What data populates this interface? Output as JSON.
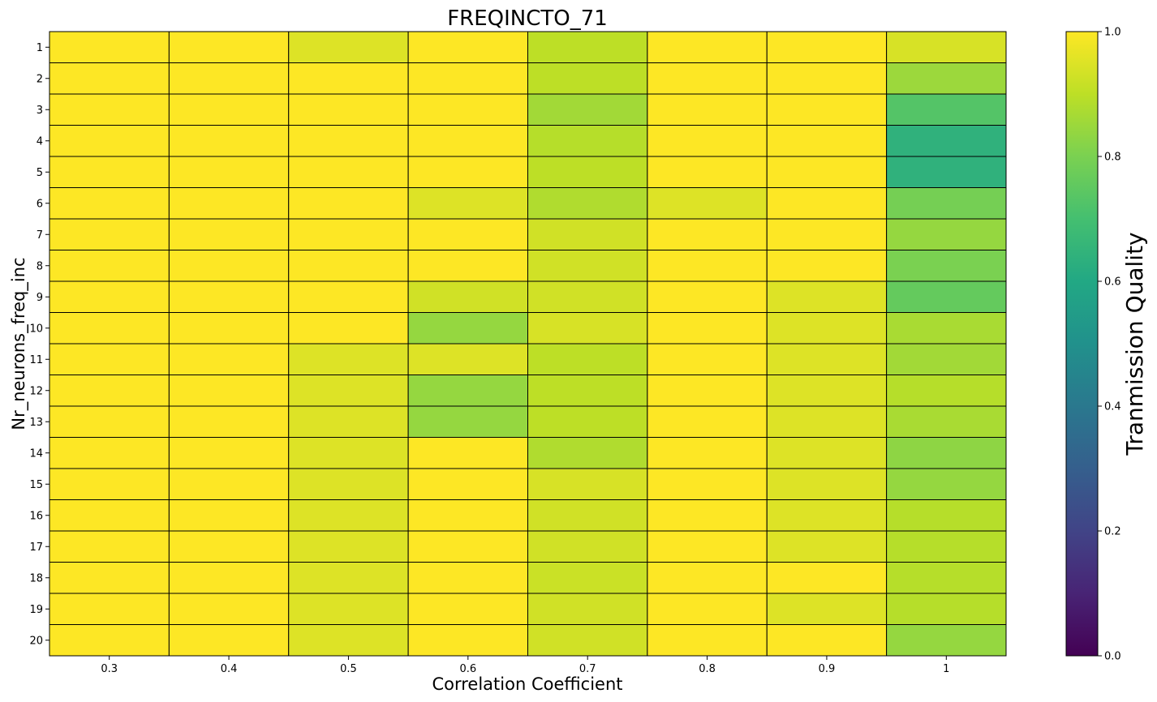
{
  "chart_data": {
    "type": "heatmap",
    "title": "FREQINCTO_71",
    "xlabel": "Correlation Coefficient",
    "ylabel": "Nr_neurons_freq_inc",
    "colorbar_label": "Tranmission Quality",
    "colormap": "viridis",
    "clim": [
      0,
      1
    ],
    "colorbar_ticks": [
      "0.0",
      "0.2",
      "0.4",
      "0.6",
      "0.8",
      "1.0"
    ],
    "x_categories": [
      "0.3",
      "0.4",
      "0.5",
      "0.6",
      "0.7",
      "0.8",
      "0.9",
      "1"
    ],
    "y_categories": [
      "1",
      "2",
      "3",
      "4",
      "5",
      "6",
      "7",
      "8",
      "9",
      "10",
      "11",
      "12",
      "13",
      "14",
      "15",
      "16",
      "17",
      "18",
      "19",
      "20"
    ],
    "grid_color": "#000000",
    "values": [
      [
        1.0,
        1.0,
        0.95,
        1.0,
        0.9,
        1.0,
        1.0,
        0.94
      ],
      [
        1.0,
        1.0,
        1.0,
        1.0,
        0.9,
        1.0,
        1.0,
        0.85
      ],
      [
        1.0,
        1.0,
        1.0,
        1.0,
        0.86,
        1.0,
        1.0,
        0.73
      ],
      [
        1.0,
        1.0,
        1.0,
        1.0,
        0.89,
        1.0,
        1.0,
        0.64
      ],
      [
        1.0,
        1.0,
        1.0,
        1.0,
        0.9,
        1.0,
        1.0,
        0.64
      ],
      [
        1.0,
        1.0,
        1.0,
        0.95,
        0.88,
        0.95,
        1.0,
        0.79
      ],
      [
        1.0,
        1.0,
        1.0,
        1.0,
        0.93,
        1.0,
        1.0,
        0.84
      ],
      [
        1.0,
        1.0,
        1.0,
        1.0,
        0.93,
        1.0,
        1.0,
        0.8
      ],
      [
        1.0,
        1.0,
        1.0,
        0.93,
        0.93,
        1.0,
        0.95,
        0.76
      ],
      [
        1.0,
        1.0,
        1.0,
        0.84,
        0.94,
        1.0,
        0.95,
        0.87
      ],
      [
        1.0,
        1.0,
        0.95,
        0.95,
        0.9,
        1.0,
        0.95,
        0.86
      ],
      [
        1.0,
        1.0,
        0.95,
        0.84,
        0.9,
        1.0,
        0.95,
        0.89
      ],
      [
        1.0,
        1.0,
        0.95,
        0.84,
        0.9,
        1.0,
        0.95,
        0.87
      ],
      [
        1.0,
        1.0,
        0.95,
        1.0,
        0.88,
        1.0,
        0.95,
        0.83
      ],
      [
        1.0,
        1.0,
        0.95,
        1.0,
        0.94,
        1.0,
        0.95,
        0.84
      ],
      [
        1.0,
        1.0,
        0.95,
        1.0,
        0.93,
        1.0,
        0.95,
        0.89
      ],
      [
        1.0,
        1.0,
        0.95,
        1.0,
        0.93,
        1.0,
        0.95,
        0.89
      ],
      [
        1.0,
        1.0,
        0.95,
        1.0,
        0.92,
        1.0,
        1.0,
        0.89
      ],
      [
        1.0,
        1.0,
        0.95,
        1.0,
        0.93,
        1.0,
        0.95,
        0.89
      ],
      [
        1.0,
        1.0,
        0.95,
        1.0,
        0.93,
        1.0,
        1.0,
        0.84
      ]
    ]
  }
}
